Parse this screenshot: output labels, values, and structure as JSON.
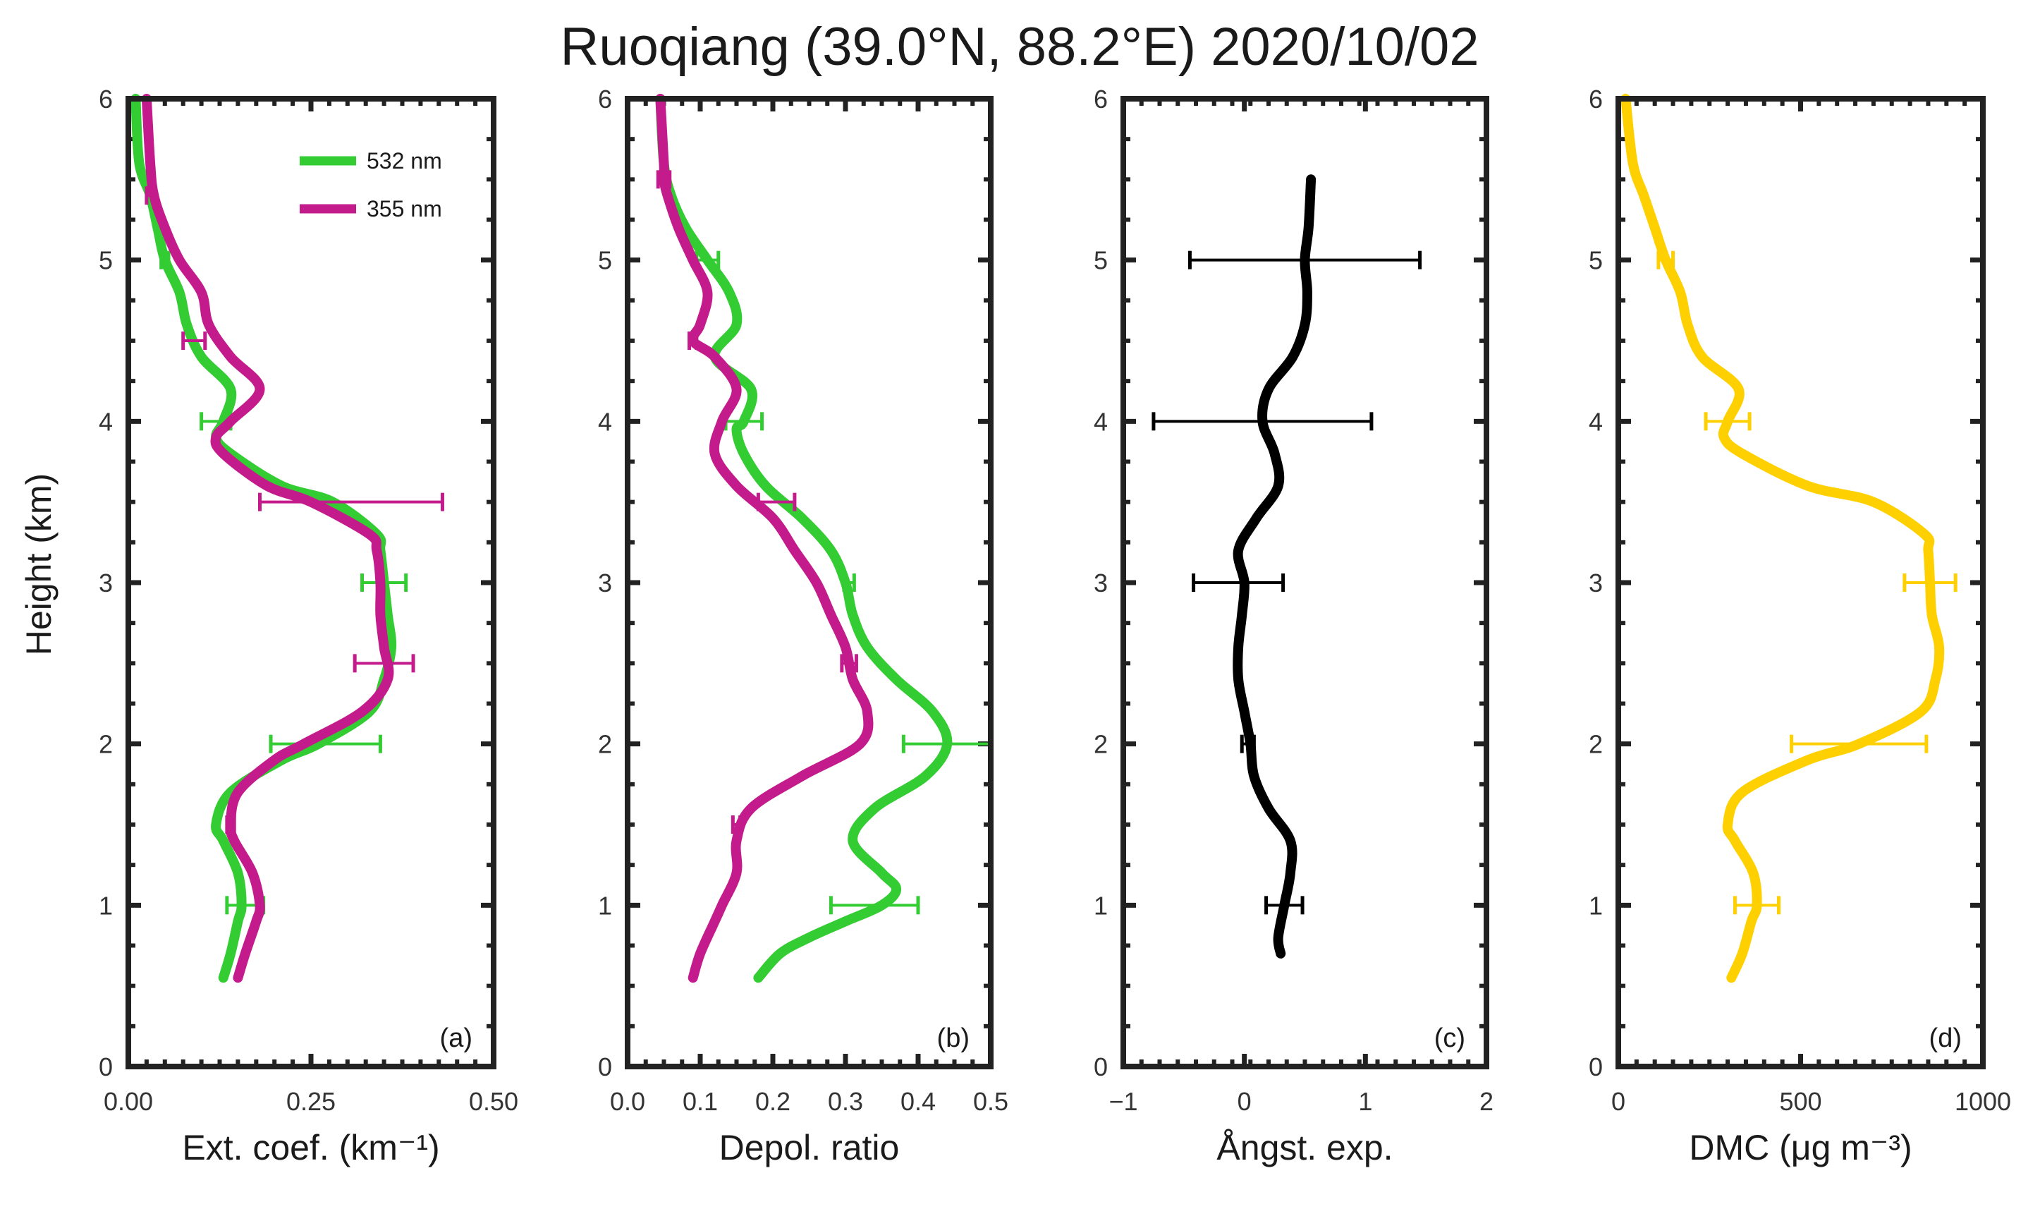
{
  "title": "Ruoqiang (39.0°N, 88.2°E) 2020/10/02",
  "ylabel": "Height (km)",
  "colors": {
    "green": "#33cc33",
    "magenta": "#c41b8c",
    "black": "#000000",
    "yellow": "#ffd000",
    "axis": "#222222"
  },
  "chart_data": [
    {
      "type": "line",
      "panel_label": "(a)",
      "xlabel": "Ext. coef. (km⁻¹)",
      "xlim": [
        0,
        0.5
      ],
      "ylim": [
        0,
        6
      ],
      "xticks": [
        0,
        0.25,
        0.5
      ],
      "xtick_labels": [
        "0.00",
        "0.25",
        "0.50"
      ],
      "yticks": [
        0,
        1,
        2,
        3,
        4,
        5,
        6
      ],
      "ytick_labels": [
        "0",
        "1",
        "2",
        "3",
        "4",
        "5",
        "6"
      ],
      "legend": {
        "position": "top-right",
        "entries": [
          "532 nm",
          "355 nm"
        ]
      },
      "series": [
        {
          "name": "532 nm",
          "color": "green",
          "y": [
            0.55,
            0.7,
            0.9,
            1.0,
            1.2,
            1.4,
            1.5,
            1.7,
            1.9,
            2.0,
            2.2,
            2.4,
            2.6,
            2.8,
            3.0,
            3.2,
            3.3,
            3.5,
            3.6,
            3.8,
            3.9,
            4.0,
            4.2,
            4.4,
            4.6,
            4.8,
            5.0,
            5.2,
            5.4,
            5.6,
            6.0
          ],
          "x": [
            0.13,
            0.14,
            0.15,
            0.155,
            0.15,
            0.13,
            0.12,
            0.14,
            0.21,
            0.26,
            0.33,
            0.35,
            0.36,
            0.355,
            0.35,
            0.345,
            0.34,
            0.28,
            0.21,
            0.14,
            0.12,
            0.13,
            0.14,
            0.1,
            0.08,
            0.07,
            0.05,
            0.04,
            0.03,
            0.015,
            0.01
          ],
          "errorbars": [
            {
              "y": 1.0,
              "x": 0.16,
              "err": 0.025
            },
            {
              "y": 2.0,
              "x": 0.27,
              "err": 0.075
            },
            {
              "y": 3.0,
              "x": 0.35,
              "err": 0.03
            },
            {
              "y": 4.0,
              "x": 0.12,
              "err": 0.02
            },
            {
              "y": 5.0,
              "x": 0.05,
              "err": 0.005
            }
          ]
        },
        {
          "name": "355 nm",
          "color": "magenta",
          "y": [
            0.55,
            0.7,
            0.9,
            1.0,
            1.2,
            1.4,
            1.5,
            1.7,
            1.9,
            2.0,
            2.2,
            2.4,
            2.6,
            2.8,
            3.0,
            3.2,
            3.3,
            3.5,
            3.6,
            3.8,
            3.9,
            4.0,
            4.2,
            4.4,
            4.6,
            4.8,
            5.0,
            5.2,
            5.4,
            5.6,
            6.0
          ],
          "x": [
            0.15,
            0.16,
            0.175,
            0.18,
            0.17,
            0.145,
            0.14,
            0.15,
            0.2,
            0.24,
            0.32,
            0.355,
            0.35,
            0.345,
            0.345,
            0.34,
            0.33,
            0.25,
            0.19,
            0.13,
            0.12,
            0.14,
            0.18,
            0.14,
            0.11,
            0.1,
            0.07,
            0.05,
            0.035,
            0.03,
            0.025
          ],
          "errorbars": [
            {
              "y": 1.5,
              "x": 0.14,
              "err": 0.005
            },
            {
              "y": 2.5,
              "x": 0.35,
              "err": 0.04
            },
            {
              "y": 3.5,
              "x": 0.305,
              "err": 0.125
            },
            {
              "y": 4.5,
              "x": 0.09,
              "err": 0.015
            },
            {
              "y": 5.4,
              "x": 0.03,
              "err": 0.005
            }
          ]
        }
      ]
    },
    {
      "type": "line",
      "panel_label": "(b)",
      "xlabel": "Depol. ratio",
      "xlim": [
        0,
        0.5
      ],
      "ylim": [
        0,
        6
      ],
      "xticks": [
        0,
        0.1,
        0.2,
        0.3,
        0.4,
        0.5
      ],
      "xtick_labels": [
        "0.0",
        "0.1",
        "0.2",
        "0.3",
        "0.4",
        "0.5"
      ],
      "yticks": [
        0,
        1,
        2,
        3,
        4,
        5,
        6
      ],
      "ytick_labels": [
        "0",
        "1",
        "2",
        "3",
        "4",
        "5",
        "6"
      ],
      "series": [
        {
          "name": "532 nm",
          "color": "green",
          "y": [
            0.55,
            0.7,
            0.8,
            0.9,
            1.0,
            1.1,
            1.2,
            1.4,
            1.6,
            1.8,
            2.0,
            2.2,
            2.4,
            2.6,
            2.8,
            3.0,
            3.2,
            3.4,
            3.6,
            3.8,
            3.95,
            4.0,
            4.2,
            4.4,
            4.6,
            4.8,
            5.0,
            5.2,
            5.4,
            5.6,
            6.0
          ],
          "y_note": "",
          "x": [
            0.18,
            0.21,
            0.25,
            0.3,
            0.35,
            0.37,
            0.35,
            0.31,
            0.34,
            0.41,
            0.44,
            0.42,
            0.37,
            0.33,
            0.31,
            0.3,
            0.28,
            0.24,
            0.19,
            0.16,
            0.15,
            0.16,
            0.17,
            0.12,
            0.15,
            0.14,
            0.11,
            0.08,
            0.06,
            0.05,
            0.045
          ],
          "errorbars": [
            {
              "y": 1.0,
              "x": 0.34,
              "err": 0.06
            },
            {
              "y": 2.0,
              "x": 0.44,
              "err": 0.06
            },
            {
              "y": 3.0,
              "x": 0.305,
              "err": 0.007
            },
            {
              "y": 4.0,
              "x": 0.16,
              "err": 0.025
            },
            {
              "y": 5.0,
              "x": 0.11,
              "err": 0.015
            }
          ]
        },
        {
          "name": "355 nm",
          "color": "magenta",
          "y": [
            0.55,
            0.7,
            0.9,
            1.0,
            1.2,
            1.4,
            1.6,
            1.8,
            2.0,
            2.2,
            2.4,
            2.6,
            2.8,
            3.0,
            3.2,
            3.4,
            3.6,
            3.8,
            4.0,
            4.2,
            4.4,
            4.5,
            4.6,
            4.8,
            5.0,
            5.2,
            5.4,
            5.5,
            5.6,
            6.0
          ],
          "x": [
            0.09,
            0.1,
            0.12,
            0.13,
            0.15,
            0.15,
            0.17,
            0.24,
            0.32,
            0.33,
            0.31,
            0.3,
            0.28,
            0.26,
            0.23,
            0.2,
            0.15,
            0.12,
            0.13,
            0.15,
            0.12,
            0.09,
            0.1,
            0.11,
            0.09,
            0.07,
            0.055,
            0.05,
            0.05,
            0.045
          ],
          "errorbars": [
            {
              "y": 1.5,
              "x": 0.15,
              "err": 0.005
            },
            {
              "y": 2.5,
              "x": 0.305,
              "err": 0.01
            },
            {
              "y": 3.5,
              "x": 0.205,
              "err": 0.025
            },
            {
              "y": 4.5,
              "x": 0.09,
              "err": 0.005
            },
            {
              "y": 5.5,
              "x": 0.05,
              "err": 0.008
            }
          ]
        }
      ]
    },
    {
      "type": "line",
      "panel_label": "(c)",
      "xlabel": "Ångst. exp.",
      "xlim": [
        -1,
        2
      ],
      "ylim": [
        0,
        6
      ],
      "xticks": [
        -1,
        0,
        1,
        2
      ],
      "xtick_labels": [
        "−1",
        "0",
        "1",
        "2"
      ],
      "yticks": [
        0,
        1,
        2,
        3,
        4,
        5,
        6
      ],
      "ytick_labels": [
        "0",
        "1",
        "2",
        "3",
        "4",
        "5",
        "6"
      ],
      "series": [
        {
          "name": "Ångström exponent",
          "color": "black",
          "y": [
            0.7,
            0.8,
            1.0,
            1.2,
            1.4,
            1.6,
            1.8,
            2.0,
            2.2,
            2.4,
            2.6,
            2.8,
            3.0,
            3.2,
            3.4,
            3.6,
            3.8,
            4.0,
            4.2,
            4.4,
            4.6,
            4.8,
            5.0,
            5.2,
            5.5
          ],
          "x": [
            0.3,
            0.28,
            0.33,
            0.38,
            0.38,
            0.2,
            0.08,
            0.05,
            0.0,
            -0.05,
            -0.05,
            -0.02,
            0.0,
            -0.05,
            0.1,
            0.28,
            0.25,
            0.15,
            0.2,
            0.4,
            0.5,
            0.52,
            0.5,
            0.53,
            0.55
          ],
          "errorbars": [
            {
              "y": 1.0,
              "x": 0.33,
              "err": 0.15
            },
            {
              "y": 2.0,
              "x": 0.03,
              "err": 0.05
            },
            {
              "y": 3.0,
              "x": -0.05,
              "err": 0.37
            },
            {
              "y": 4.0,
              "x": 0.15,
              "err": 0.9
            },
            {
              "y": 5.0,
              "x": 0.5,
              "err": 0.95
            }
          ]
        }
      ]
    },
    {
      "type": "line",
      "panel_label": "(d)",
      "xlabel": "DMC (μg m⁻³)",
      "xlim": [
        0,
        1000
      ],
      "ylim": [
        0,
        6
      ],
      "xticks": [
        0,
        500,
        1000
      ],
      "xtick_labels": [
        "0",
        "500",
        "1000"
      ],
      "yticks": [
        0,
        1,
        2,
        3,
        4,
        5,
        6
      ],
      "ytick_labels": [
        "0",
        "1",
        "2",
        "3",
        "4",
        "5",
        "6"
      ],
      "series": [
        {
          "name": "DMC",
          "color": "yellow",
          "y": [
            0.55,
            0.7,
            0.9,
            1.0,
            1.2,
            1.4,
            1.5,
            1.7,
            1.9,
            2.0,
            2.2,
            2.4,
            2.6,
            2.8,
            3.0,
            3.2,
            3.3,
            3.5,
            3.6,
            3.8,
            3.9,
            4.0,
            4.2,
            4.4,
            4.6,
            4.8,
            5.0,
            5.2,
            5.4,
            5.6,
            6.0
          ],
          "x": [
            310,
            340,
            365,
            380,
            370,
            320,
            300,
            340,
            520,
            660,
            830,
            870,
            880,
            860,
            855,
            850,
            840,
            700,
            520,
            340,
            290,
            300,
            330,
            230,
            190,
            170,
            130,
            100,
            70,
            40,
            20
          ],
          "errorbars": [
            {
              "y": 1.0,
              "x": 380,
              "err": 60
            },
            {
              "y": 2.0,
              "x": 660,
              "err": 185
            },
            {
              "y": 3.0,
              "x": 855,
              "err": 70
            },
            {
              "y": 4.0,
              "x": 300,
              "err": 60
            },
            {
              "y": 5.0,
              "x": 130,
              "err": 20
            }
          ]
        }
      ]
    }
  ]
}
